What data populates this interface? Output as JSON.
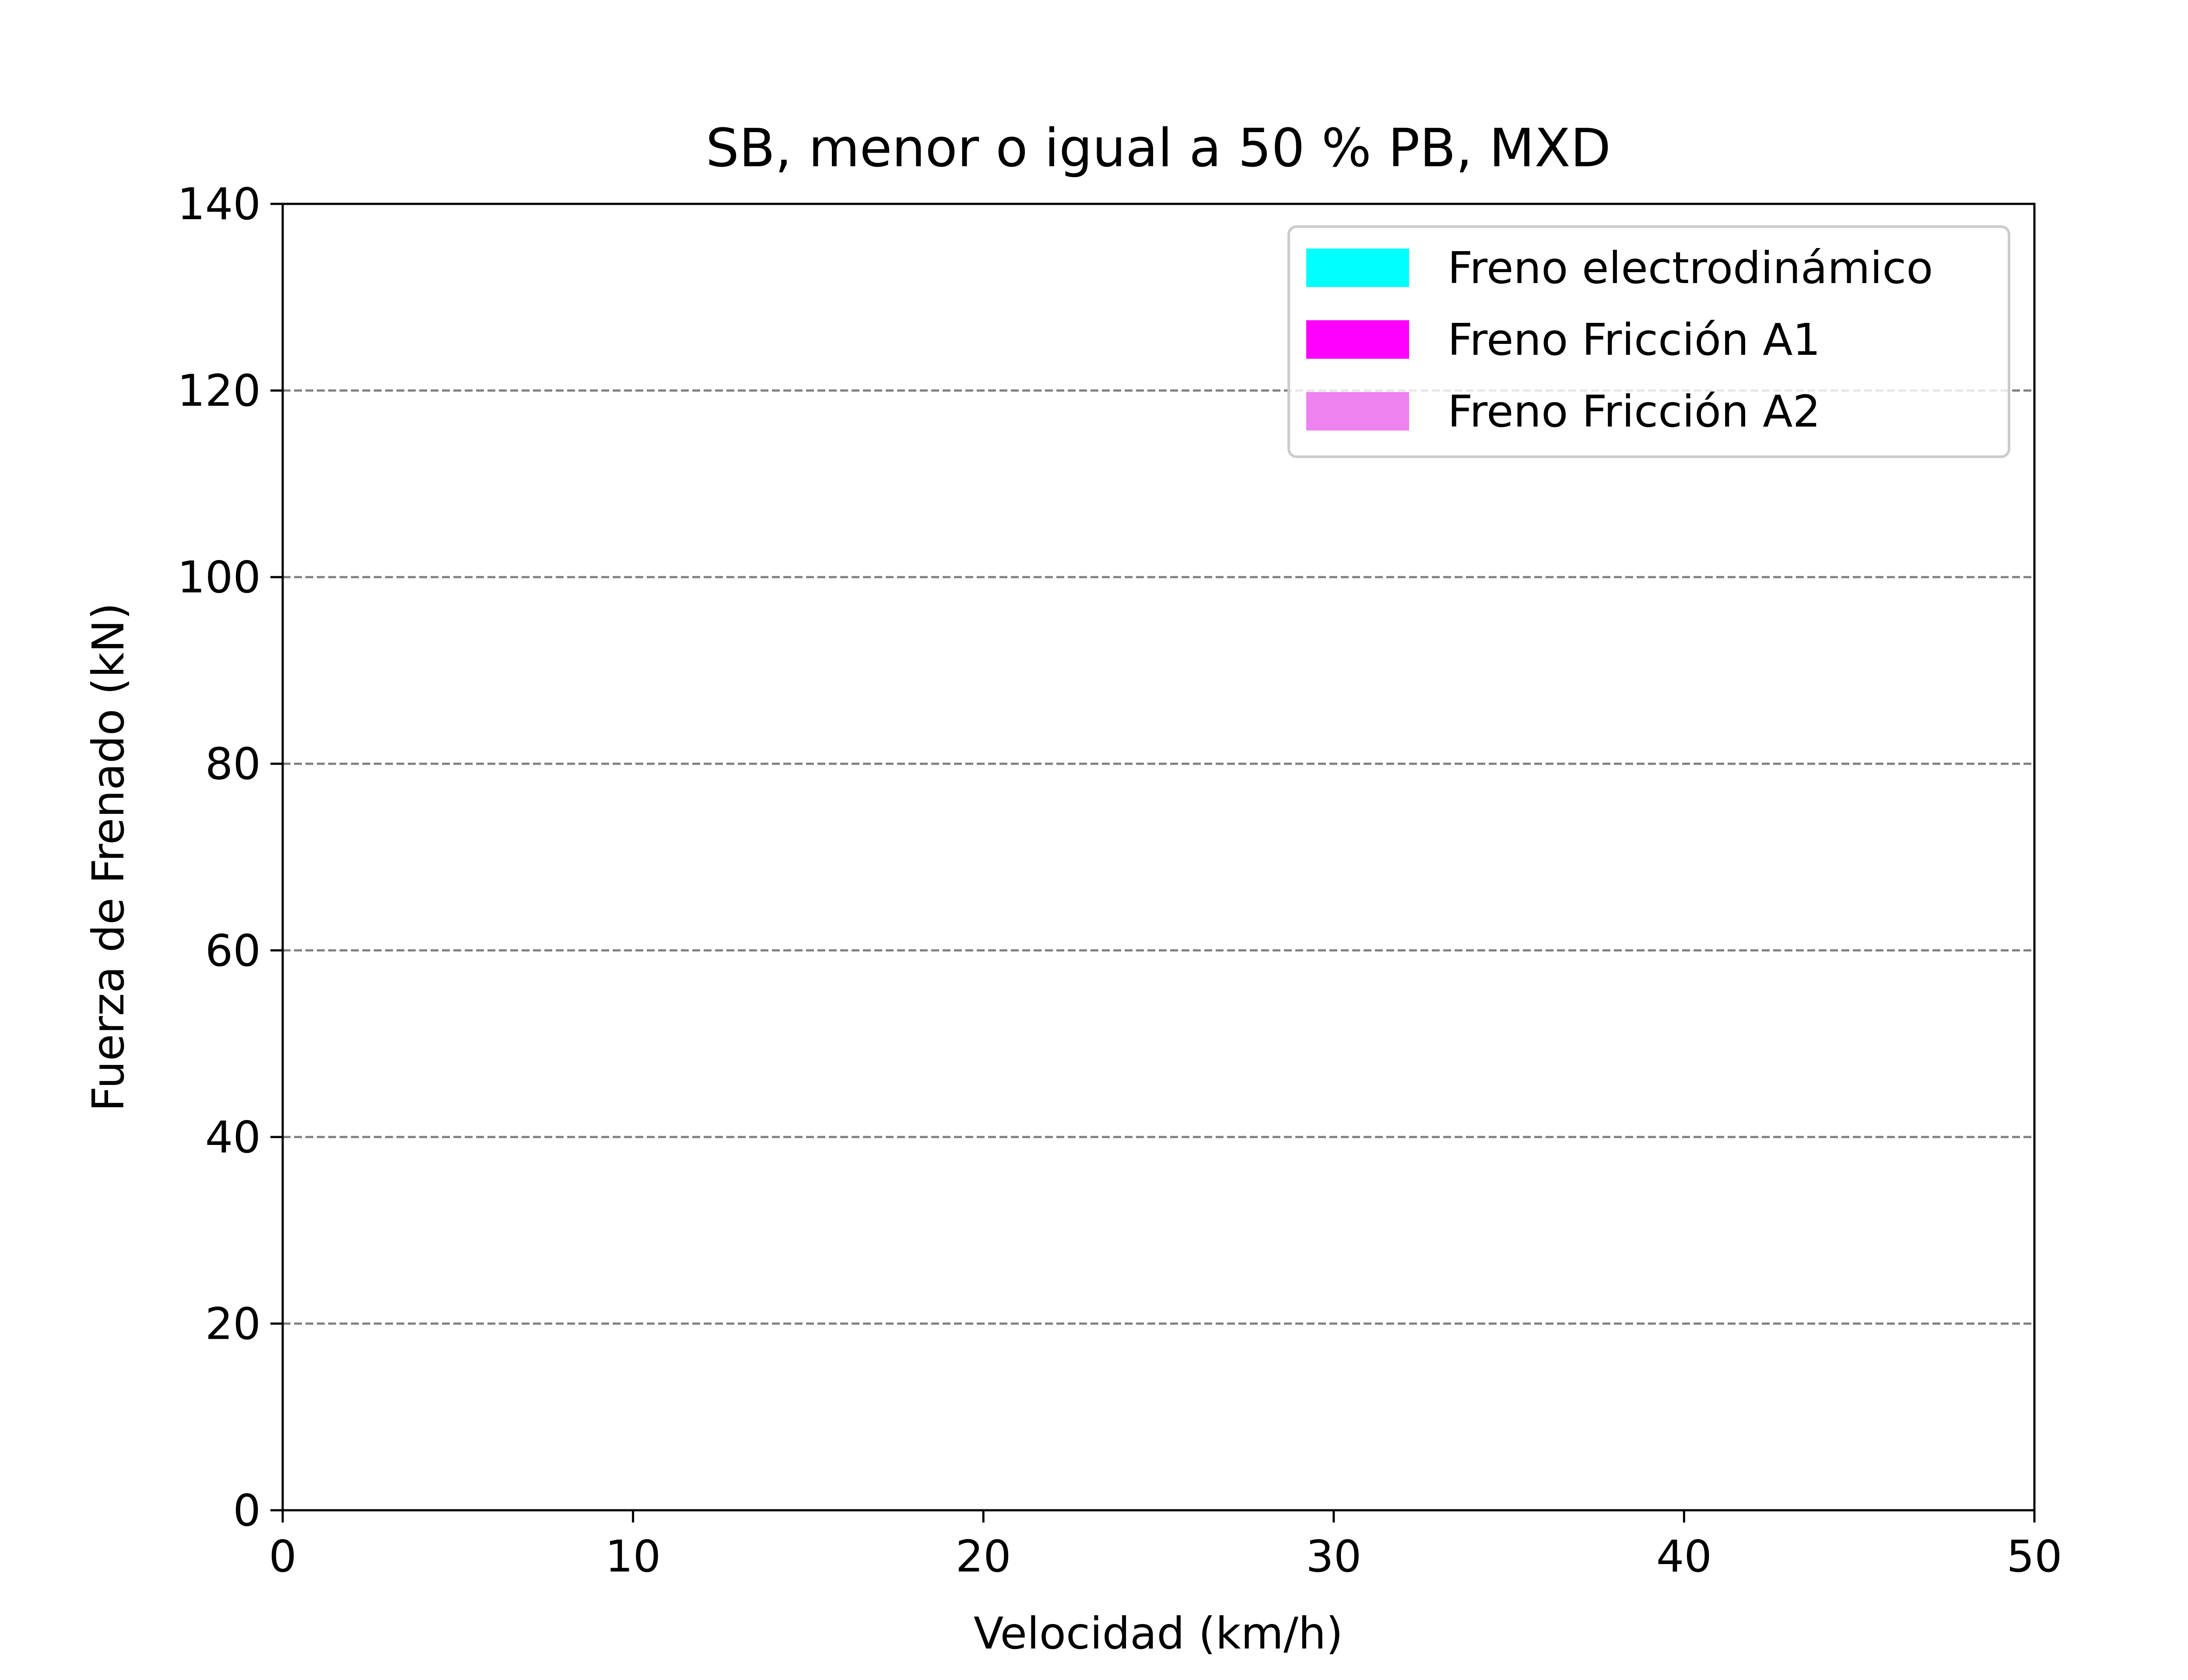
{
  "chart_data": {
    "type": "area",
    "title": "SB, menor o igual a 50 % PB, MXD",
    "xlabel": "Velocidad (km/h)",
    "ylabel": "Fuerza de Frenado (kN)",
    "xlim": [
      0,
      50
    ],
    "ylim": [
      0,
      140
    ],
    "xticks": [
      0,
      10,
      20,
      30,
      40,
      50
    ],
    "yticks": [
      0,
      20,
      40,
      60,
      80,
      100,
      120,
      140
    ],
    "xtick_labels": [
      "0",
      "10",
      "20",
      "30",
      "40",
      "50"
    ],
    "ytick_labels": [
      "0",
      "20",
      "40",
      "60",
      "80",
      "100",
      "120",
      "140"
    ],
    "grid": "horizontal-dashed",
    "legend_position": "top-right",
    "x": [
      0,
      50
    ],
    "series": [
      {
        "name": "Freno Fricción A2",
        "values": [
          0,
          0
        ],
        "color": "#ee82ee"
      },
      {
        "name": "Freno Fricción A1",
        "values": [
          0,
          0
        ],
        "color": "#ff00ff"
      },
      {
        "name": "Freno electrodinámico",
        "values": [
          0,
          0
        ],
        "color": "#00ffff"
      }
    ]
  }
}
